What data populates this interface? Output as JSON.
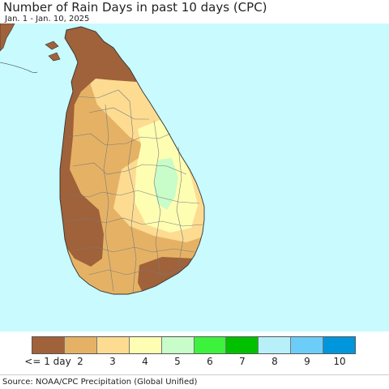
{
  "title": "Number of Rain Days in past 10 days (CPC)",
  "subtitle": "Jan. 1 - Jan. 10, 2025",
  "source": "Source: NOAA/CPC Precipitation (Global Unified)",
  "colors": {
    "sea": "#c8fafe",
    "boundary": "#7a7a7a",
    "coast": "#333333"
  },
  "legend": {
    "items": [
      {
        "label": "<= 1 day",
        "color": "#a0623a"
      },
      {
        "label": "2",
        "color": "#e5b265"
      },
      {
        "label": "3",
        "color": "#fddc92"
      },
      {
        "label": "4",
        "color": "#fefeb2"
      },
      {
        "label": "5",
        "color": "#c8fcc8"
      },
      {
        "label": "6",
        "color": "#3cf23c"
      },
      {
        "label": "7",
        "color": "#00c000"
      },
      {
        "label": "8",
        "color": "#b7f0f9"
      },
      {
        "label": "9",
        "color": "#6ccef8"
      },
      {
        "label": "10",
        "color": "#0096dc"
      }
    ]
  }
}
